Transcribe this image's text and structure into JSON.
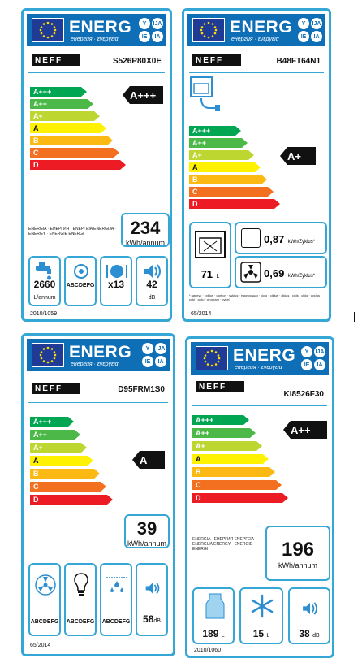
{
  "header": {
    "energ": "ENERG",
    "subtitle": "енергия · ενεργεια",
    "lang_circles": [
      "Y",
      "IJA",
      "IE",
      "IA"
    ]
  },
  "scale": [
    "A+++",
    "A++",
    "A+",
    "A",
    "B",
    "C",
    "D"
  ],
  "scale_colors": [
    "#00a651",
    "#4cb848",
    "#bed630",
    "#fff200",
    "#fdb913",
    "#f37021",
    "#ed1c24"
  ],
  "labels": [
    {
      "brand": "NEFF",
      "model": "S526P80X0E",
      "rating": "A+++",
      "consumption_text": "ENERGIA · ЕНЕРГИЯ · ΕΝΕΡΓΕΙΑ ENERGIJA · ENERGY · ENERGIE ENERGI",
      "consumption_value": "234",
      "consumption_unit": "kWh/annum",
      "icons": [
        {
          "name": "water-tap-icon",
          "value": "2660",
          "unit": "L/annum"
        },
        {
          "name": "drying-icon",
          "value": "ABCDEFG",
          "unit": ""
        },
        {
          "name": "place-settings-icon",
          "value": "x13",
          "unit": ""
        },
        {
          "name": "noise-icon",
          "value": "42",
          "unit": "dB"
        }
      ],
      "regulation": "2010/1059"
    },
    {
      "brand": "NEFF",
      "model": "B48FT64N1",
      "rating": "A+",
      "cavity_icon": "oven-icon",
      "volume_value": "71",
      "volume_unit": "L",
      "conv_value": "0,87",
      "conv_unit": "kWh/Zyklus*",
      "fan_value": "0,69",
      "fan_unit": "kWh/Zyklus*",
      "footnote": "* циклус · cyklus · portion · syklus · προγραμμα · ciclo · ciklus · ciklas · cikls · ciklu · cyclus · cykl · ciclu · program · cykel",
      "regulation": "65/2014"
    },
    {
      "brand": "NEFF",
      "model": "D95FRM1S0",
      "rating": "A",
      "consumption_value": "39",
      "consumption_unit": "kWh/annum",
      "icons": [
        {
          "name": "fan-icon",
          "value": "ABCDEFG",
          "unit": "",
          "prefix": "A"
        },
        {
          "name": "lightbulb-icon",
          "value": "ABCDEFG",
          "unit": "",
          "prefix": "A"
        },
        {
          "name": "grease-filter-icon",
          "value": "ABCDEFG",
          "unit": "",
          "prefix": "A"
        },
        {
          "name": "noise-icon",
          "value": "58",
          "unit": "dB"
        }
      ],
      "regulation": "65/2014"
    },
    {
      "brand": "NEFF",
      "model": "KI8526F30",
      "rating": "A++",
      "consumption_text": "ENERGIA · ЕНЕРГИЯ ΕΝΕΡΓΕΙΑ · ENERGIJA ENERGY · ENERGIE · ENERGI",
      "consumption_value": "196",
      "consumption_unit": "kWh/annum",
      "icons": [
        {
          "name": "fresh-food-icon",
          "value": "189",
          "unit": "L"
        },
        {
          "name": "freezer-snowflake-icon",
          "value": "15",
          "unit": "L"
        },
        {
          "name": "noise-icon",
          "value": "38",
          "unit": "dB"
        }
      ],
      "regulation": "2010/1060"
    }
  ]
}
